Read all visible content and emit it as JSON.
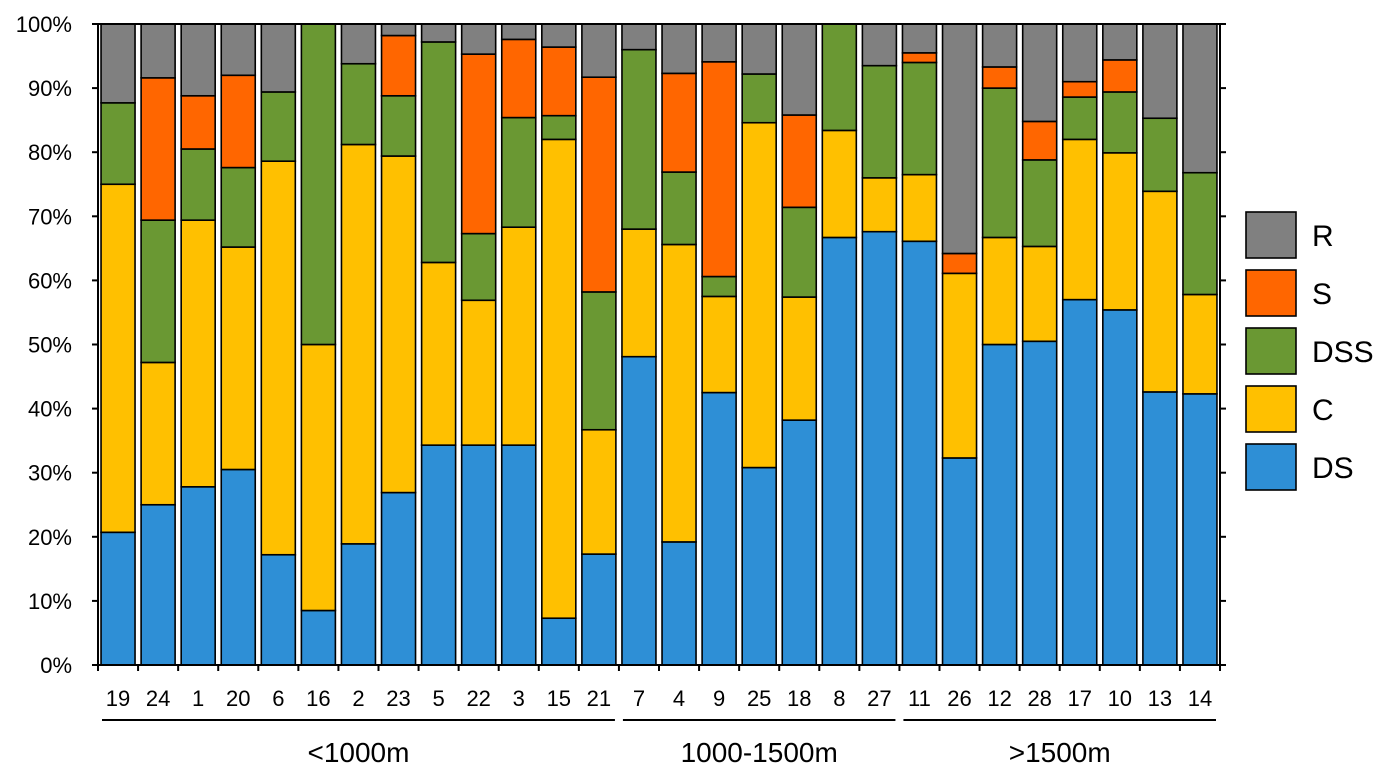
{
  "chart_data": {
    "type": "stacked-bar",
    "stacking": "percent",
    "categories": [
      "19",
      "24",
      "1",
      "20",
      "6",
      "16",
      "2",
      "23",
      "5",
      "22",
      "3",
      "15",
      "21",
      "7",
      "4",
      "9",
      "25",
      "18",
      "8",
      "27",
      "11",
      "26",
      "12",
      "28",
      "17",
      "10",
      "13",
      "14"
    ],
    "groups": [
      {
        "label": "<1000m",
        "categories": [
          "19",
          "24",
          "1",
          "20",
          "6",
          "16",
          "2",
          "23",
          "5",
          "22",
          "3",
          "15",
          "21"
        ]
      },
      {
        "label": "1000-1500m",
        "categories": [
          "7",
          "4",
          "9",
          "25",
          "18",
          "8",
          "27"
        ]
      },
      {
        "label": ">1500m",
        "categories": [
          "11",
          "26",
          "12",
          "28",
          "17",
          "10",
          "13",
          "14"
        ]
      }
    ],
    "series": [
      {
        "name": "DS",
        "color": "#2E8FD6",
        "values": [
          20.7,
          25.0,
          27.8,
          30.5,
          17.2,
          8.5,
          18.9,
          26.9,
          34.3,
          34.3,
          34.3,
          7.3,
          17.3,
          48.1,
          19.2,
          42.5,
          30.8,
          38.2,
          66.7,
          67.6,
          66.1,
          32.3,
          50.0,
          50.5,
          57.0,
          55.4,
          42.6,
          42.3
        ]
      },
      {
        "name": "C",
        "color": "#FFC000",
        "values": [
          54.3,
          22.2,
          41.6,
          34.7,
          61.4,
          41.5,
          62.3,
          52.5,
          28.5,
          22.6,
          34.0,
          74.7,
          19.4,
          19.9,
          46.4,
          15.0,
          53.8,
          19.2,
          16.7,
          8.4,
          10.4,
          28.8,
          16.7,
          14.8,
          25.0,
          24.5,
          31.3,
          15.5
        ]
      },
      {
        "name": "DSS",
        "color": "#6A9833",
        "values": [
          12.7,
          22.2,
          11.1,
          12.4,
          10.8,
          50.0,
          12.6,
          9.4,
          34.4,
          10.4,
          17.1,
          3.7,
          21.5,
          28.0,
          11.3,
          3.1,
          7.6,
          14.0,
          16.6,
          17.5,
          17.5,
          0,
          23.3,
          13.5,
          6.6,
          9.5,
          11.4,
          19.0
        ]
      },
      {
        "name": "S",
        "color": "#FF6600",
        "values": [
          0,
          22.2,
          8.3,
          14.4,
          0,
          0,
          0,
          9.4,
          0,
          28.0,
          12.2,
          10.7,
          33.5,
          0,
          15.4,
          33.5,
          0,
          14.4,
          0,
          0,
          1.5,
          3.1,
          3.3,
          6.0,
          2.4,
          5.0,
          0,
          0
        ]
      },
      {
        "name": "R",
        "color": "#808080",
        "values": [
          12.3,
          8.4,
          11.2,
          8.0,
          10.6,
          0,
          6.2,
          1.8,
          2.8,
          4.7,
          2.4,
          3.6,
          8.3,
          4.0,
          7.7,
          5.9,
          7.8,
          14.2,
          0,
          6.5,
          4.5,
          35.8,
          6.7,
          15.2,
          9.0,
          5.6,
          14.7,
          23.2
        ]
      }
    ],
    "legend_order": [
      "R",
      "S",
      "DSS",
      "C",
      "DS"
    ],
    "legend_position": "right",
    "ylim": [
      0,
      100
    ],
    "yticks": [
      "0%",
      "10%",
      "20%",
      "30%",
      "40%",
      "50%",
      "60%",
      "70%",
      "80%",
      "90%",
      "100%"
    ],
    "title": "",
    "xlabel": "",
    "ylabel": ""
  }
}
